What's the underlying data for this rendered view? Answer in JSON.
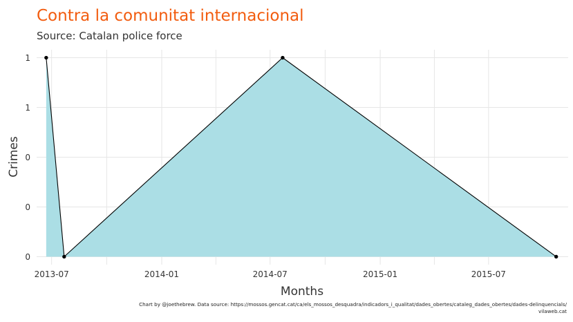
{
  "chart_data": {
    "type": "area",
    "title": "Contra la comunitat internacional",
    "subtitle": "Source: Catalan police force",
    "xlabel": "Months",
    "ylabel": "Crimes",
    "x": [
      "2013-06-22",
      "2013-07-22",
      "2014-07-22",
      "2015-10-22"
    ],
    "series": [
      {
        "values": [
          1,
          0,
          1,
          0
        ]
      }
    ],
    "xlim": [
      "2013-06-06",
      "2015-11-11"
    ],
    "ylim": [
      -0.04,
      1.04
    ],
    "x_ticks": [
      {
        "value": "2013-07-01",
        "label": "2013-07"
      },
      {
        "value": "2014-01-01",
        "label": "2014-01"
      },
      {
        "value": "2014-07-01",
        "label": "2014-07"
      },
      {
        "value": "2015-01-01",
        "label": "2015-01"
      },
      {
        "value": "2015-07-01",
        "label": "2015-07"
      }
    ],
    "y_ticks": [
      {
        "value": 0,
        "label": "0"
      },
      {
        "value": 0.25,
        "label": "0"
      },
      {
        "value": 0.5,
        "label": "0"
      },
      {
        "value": 0.75,
        "label": "1"
      },
      {
        "value": 1,
        "label": "1"
      }
    ],
    "grid": true,
    "legend": "none",
    "colors": {
      "fill": "#abdee5",
      "line": "#000000",
      "point": "#000000",
      "title": "#f25c0f"
    },
    "caption_lines": [
      "Chart by @joethebrew. Data source: https://mossos.gencat.cat/ca/els_mossos_desquadra/indicadors_i_qualitat/dades_obertes/cataleg_dades_obertes/dades-delinquencials/",
      "vilaweb.cat"
    ]
  }
}
